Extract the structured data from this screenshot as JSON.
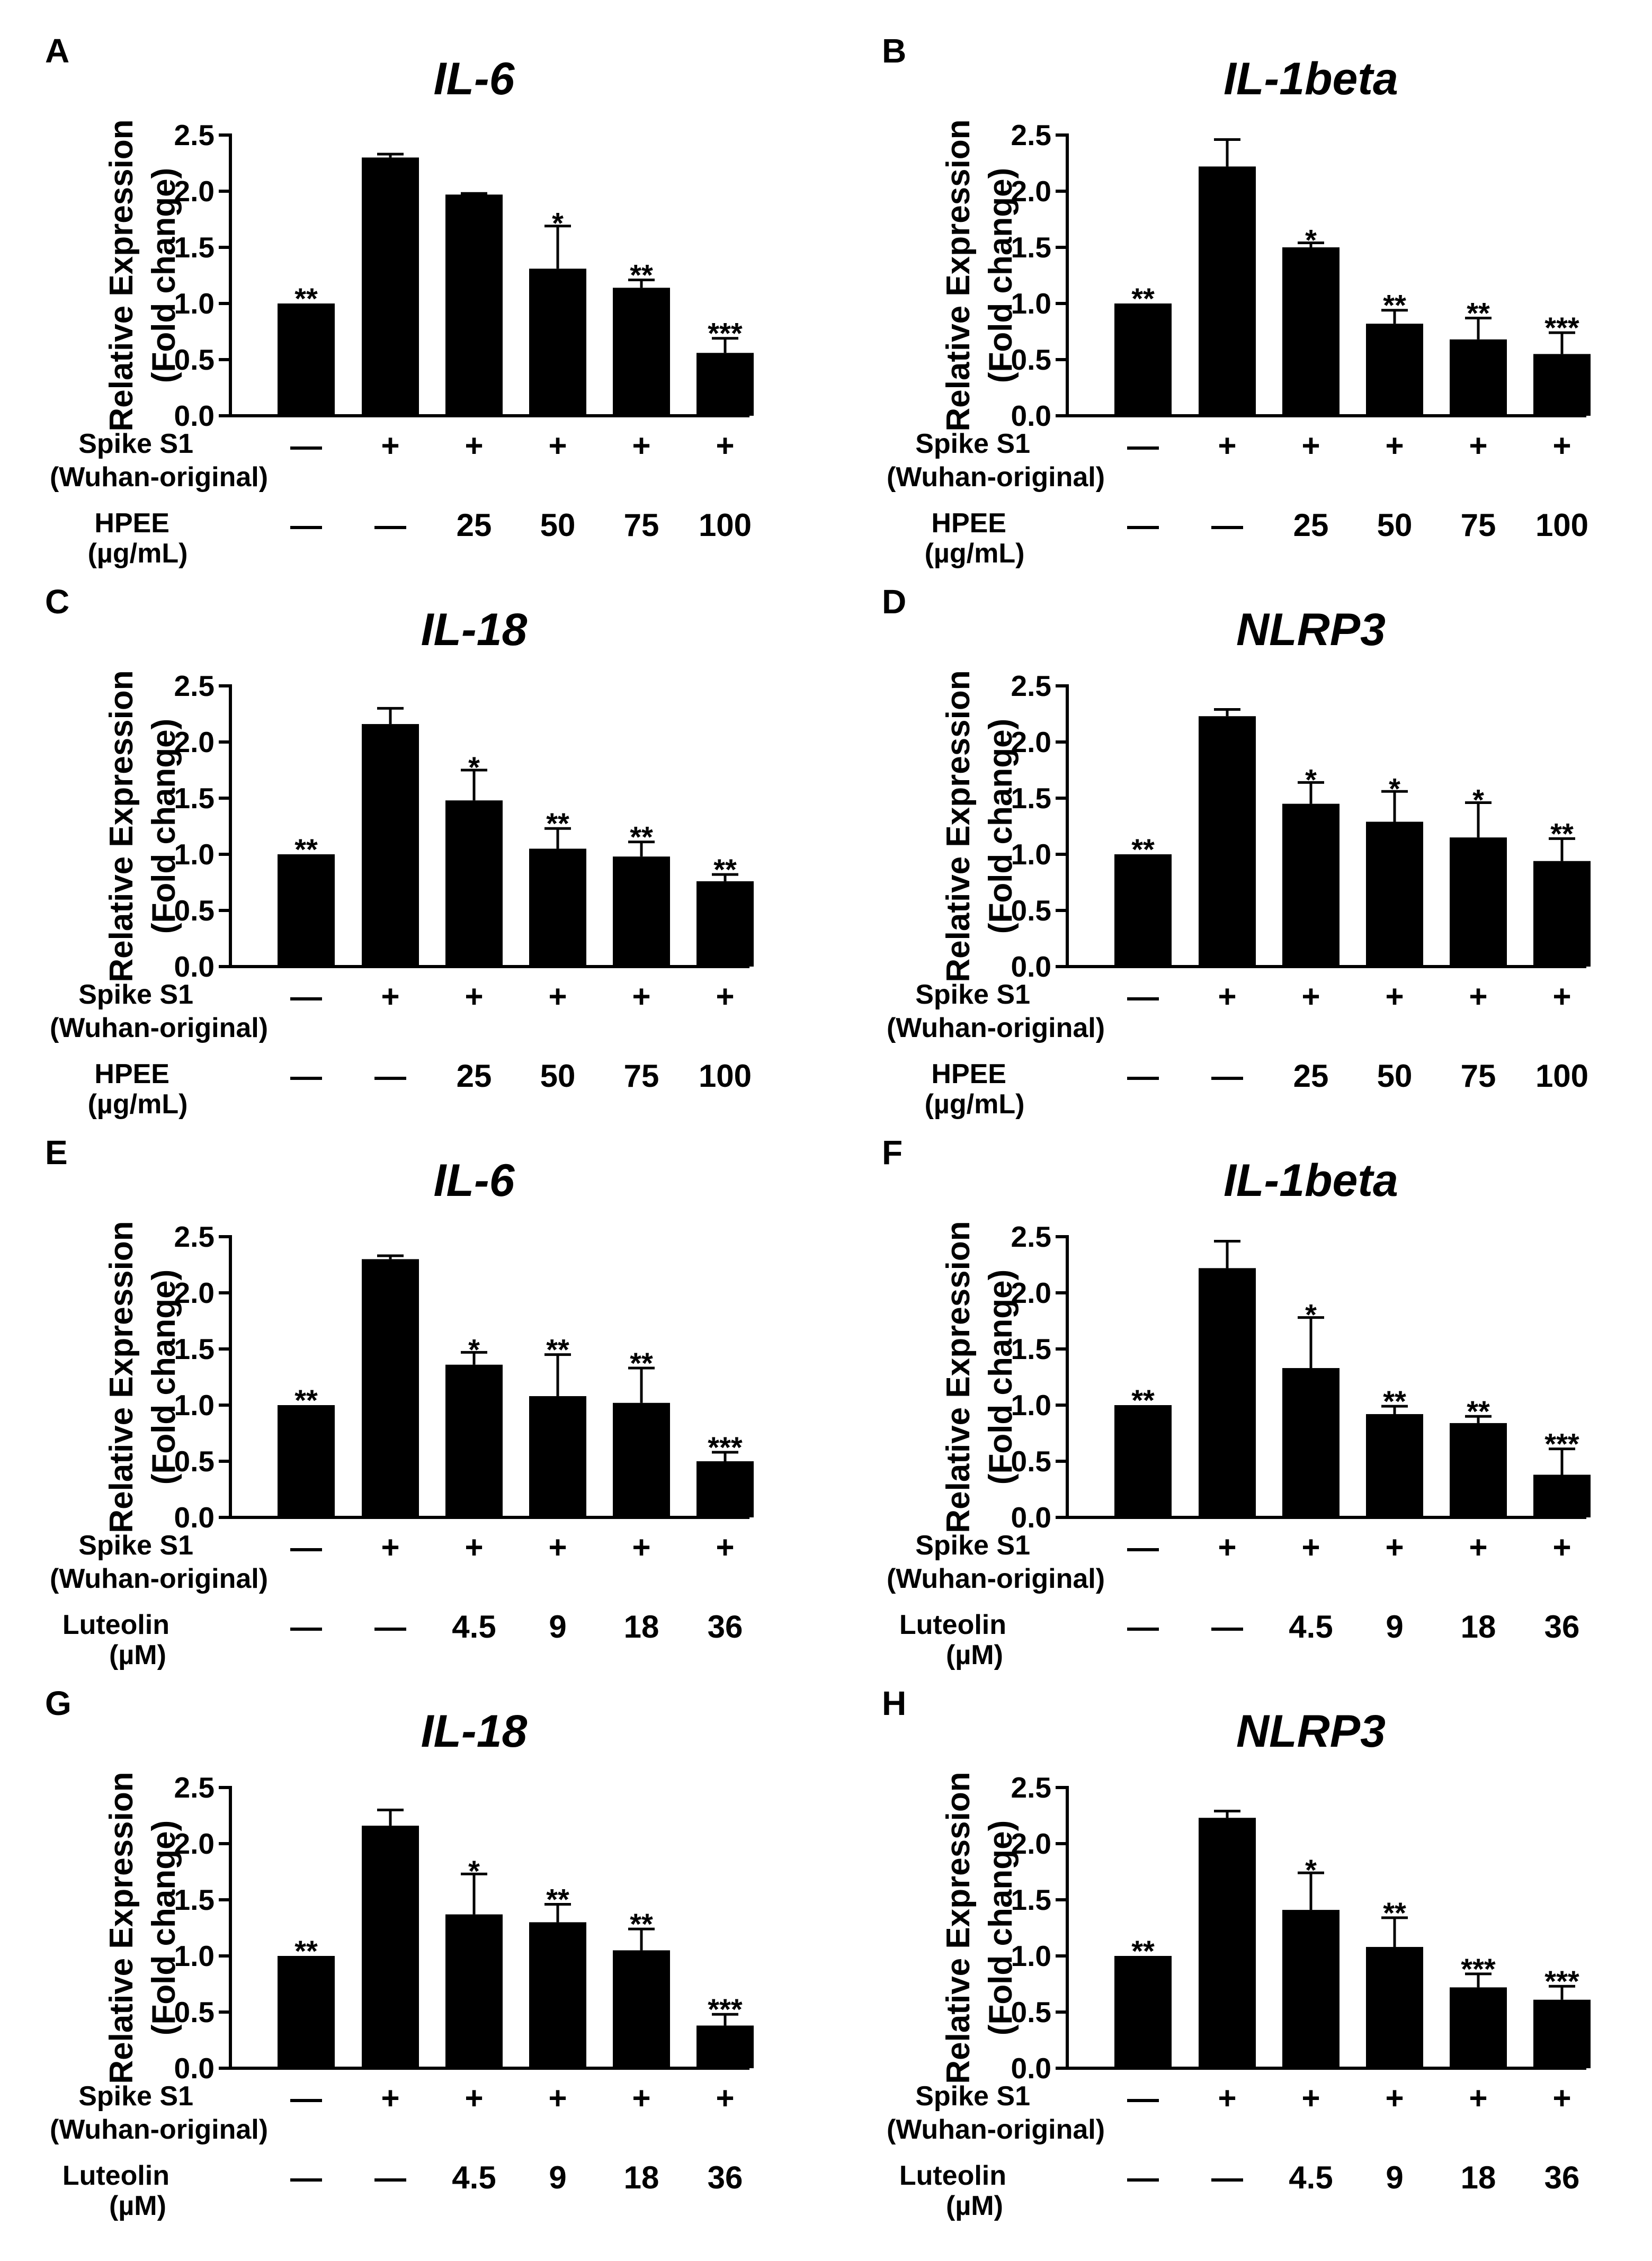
{
  "chart_data": [
    {
      "panel": "A",
      "type": "bar",
      "title": "IL-6",
      "ylabel_line1": "Relative Expression",
      "ylabel_line2": "(Fold change)",
      "ylim": [
        0,
        2.5
      ],
      "yticks": [
        "0.0",
        "0.5",
        "1.0",
        "1.5",
        "2.0",
        "2.5"
      ],
      "values": [
        1.0,
        2.3,
        1.97,
        1.31,
        1.14,
        0.56
      ],
      "errors": [
        0,
        0.03,
        0.01,
        0.38,
        0.07,
        0.13
      ],
      "significance": [
        "**",
        "",
        "",
        "*",
        "**",
        "***"
      ],
      "row1_label": "Spike S1",
      "row1_sublabel": "(Wuhan-original)",
      "row1_values": [
        "—",
        "+",
        "+",
        "+",
        "+",
        "+"
      ],
      "row2_label": "HPEE",
      "row2_sublabel": "(µg/mL)",
      "row2_values": [
        "—",
        "—",
        "25",
        "50",
        "75",
        "100"
      ]
    },
    {
      "panel": "B",
      "type": "bar",
      "title": "IL-1beta",
      "ylabel_line1": "Relative Expression",
      "ylabel_line2": "(Fold change)",
      "ylim": [
        0,
        2.5
      ],
      "yticks": [
        "0.0",
        "0.5",
        "1.0",
        "1.5",
        "2.0",
        "2.5"
      ],
      "values": [
        1.0,
        2.22,
        1.5,
        0.82,
        0.68,
        0.55
      ],
      "errors": [
        0,
        0.24,
        0.04,
        0.12,
        0.19,
        0.19
      ],
      "significance": [
        "**",
        "",
        "*",
        "**",
        "**",
        "***"
      ],
      "row1_label": "Spike S1",
      "row1_sublabel": "(Wuhan-original)",
      "row1_values": [
        "—",
        "+",
        "+",
        "+",
        "+",
        "+"
      ],
      "row2_label": "HPEE",
      "row2_sublabel": "(µg/mL)",
      "row2_values": [
        "—",
        "—",
        "25",
        "50",
        "75",
        "100"
      ]
    },
    {
      "panel": "C",
      "type": "bar",
      "title": "IL-18",
      "ylabel_line1": "Relative Expression",
      "ylabel_line2": "(Fold change)",
      "ylim": [
        0,
        2.5
      ],
      "yticks": [
        "0.0",
        "0.5",
        "1.0",
        "1.5",
        "2.0",
        "2.5"
      ],
      "values": [
        1.0,
        2.16,
        1.48,
        1.05,
        0.98,
        0.76
      ],
      "errors": [
        0,
        0.14,
        0.27,
        0.18,
        0.13,
        0.06
      ],
      "significance": [
        "**",
        "",
        "*",
        "**",
        "**",
        "**"
      ],
      "row1_label": "Spike S1",
      "row1_sublabel": "(Wuhan-original)",
      "row1_values": [
        "—",
        "+",
        "+",
        "+",
        "+",
        "+"
      ],
      "row2_label": "HPEE",
      "row2_sublabel": "(µg/mL)",
      "row2_values": [
        "—",
        "—",
        "25",
        "50",
        "75",
        "100"
      ]
    },
    {
      "panel": "D",
      "type": "bar",
      "title": "NLRP3",
      "ylabel_line1": "Relative Expression",
      "ylabel_line2": "(Fold change)",
      "ylim": [
        0,
        2.5
      ],
      "yticks": [
        "0.0",
        "0.5",
        "1.0",
        "1.5",
        "2.0",
        "2.5"
      ],
      "values": [
        1.0,
        2.23,
        1.45,
        1.29,
        1.15,
        0.94
      ],
      "errors": [
        0,
        0.06,
        0.19,
        0.27,
        0.31,
        0.2
      ],
      "significance": [
        "**",
        "",
        "*",
        "*",
        "*",
        "**"
      ],
      "row1_label": "Spike S1",
      "row1_sublabel": "(Wuhan-original)",
      "row1_values": [
        "—",
        "+",
        "+",
        "+",
        "+",
        "+"
      ],
      "row2_label": "HPEE",
      "row2_sublabel": "(µg/mL)",
      "row2_values": [
        "—",
        "—",
        "25",
        "50",
        "75",
        "100"
      ]
    },
    {
      "panel": "E",
      "type": "bar",
      "title": "IL-6",
      "ylabel_line1": "Relative Expression",
      "ylabel_line2": "(Fold change)",
      "ylim": [
        0,
        2.5
      ],
      "yticks": [
        "0.0",
        "0.5",
        "1.0",
        "1.5",
        "2.0",
        "2.5"
      ],
      "values": [
        1.0,
        2.3,
        1.36,
        1.08,
        1.02,
        0.5
      ],
      "errors": [
        0,
        0.03,
        0.11,
        0.37,
        0.31,
        0.08
      ],
      "significance": [
        "**",
        "",
        "*",
        "**",
        "**",
        "***"
      ],
      "row1_label": "Spike S1",
      "row1_sublabel": "(Wuhan-original)",
      "row1_values": [
        "—",
        "+",
        "+",
        "+",
        "+",
        "+"
      ],
      "row2_label": "Luteolin",
      "row2_sublabel": "(µM)",
      "row2_values": [
        "—",
        "—",
        "4.5",
        "9",
        "18",
        "36"
      ]
    },
    {
      "panel": "F",
      "type": "bar",
      "title": "IL-1beta",
      "ylabel_line1": "Relative Expression",
      "ylabel_line2": "(Fold change)",
      "ylim": [
        0,
        2.5
      ],
      "yticks": [
        "0.0",
        "0.5",
        "1.0",
        "1.5",
        "2.0",
        "2.5"
      ],
      "values": [
        1.0,
        2.22,
        1.33,
        0.92,
        0.84,
        0.38
      ],
      "errors": [
        0,
        0.24,
        0.45,
        0.07,
        0.06,
        0.23
      ],
      "significance": [
        "**",
        "",
        "*",
        "**",
        "**",
        "***"
      ],
      "row1_label": "Spike S1",
      "row1_sublabel": "(Wuhan-original)",
      "row1_values": [
        "—",
        "+",
        "+",
        "+",
        "+",
        "+"
      ],
      "row2_label": "Luteolin",
      "row2_sublabel": "(µM)",
      "row2_values": [
        "—",
        "—",
        "4.5",
        "9",
        "18",
        "36"
      ]
    },
    {
      "panel": "G",
      "type": "bar",
      "title": "IL-18",
      "ylabel_line1": "Relative Expression",
      "ylabel_line2": "(Fold change)",
      "ylim": [
        0,
        2.5
      ],
      "yticks": [
        "0.0",
        "0.5",
        "1.0",
        "1.5",
        "2.0",
        "2.5"
      ],
      "values": [
        1.0,
        2.16,
        1.37,
        1.3,
        1.05,
        0.38
      ],
      "errors": [
        0,
        0.14,
        0.36,
        0.16,
        0.19,
        0.1
      ],
      "significance": [
        "**",
        "",
        "*",
        "**",
        "**",
        "***"
      ],
      "row1_label": "Spike S1",
      "row1_sublabel": "(Wuhan-original)",
      "row1_values": [
        "—",
        "+",
        "+",
        "+",
        "+",
        "+"
      ],
      "row2_label": "Luteolin",
      "row2_sublabel": "(µM)",
      "row2_values": [
        "—",
        "—",
        "4.5",
        "9",
        "18",
        "36"
      ]
    },
    {
      "panel": "H",
      "type": "bar",
      "title": "NLRP3",
      "ylabel_line1": "Relative Expression",
      "ylabel_line2": "(Fold change)",
      "ylim": [
        0,
        2.5
      ],
      "yticks": [
        "0.0",
        "0.5",
        "1.0",
        "1.5",
        "2.0",
        "2.5"
      ],
      "values": [
        1.0,
        2.23,
        1.41,
        1.08,
        0.72,
        0.61
      ],
      "errors": [
        0,
        0.06,
        0.33,
        0.26,
        0.12,
        0.12
      ],
      "significance": [
        "**",
        "",
        "*",
        "**",
        "***",
        "***"
      ],
      "row1_label": "Spike S1",
      "row1_sublabel": "(Wuhan-original)",
      "row1_values": [
        "—",
        "+",
        "+",
        "+",
        "+",
        "+"
      ],
      "row2_label": "Luteolin",
      "row2_sublabel": "(µM)",
      "row2_values": [
        "—",
        "—",
        "4.5",
        "9",
        "18",
        "36"
      ]
    }
  ]
}
